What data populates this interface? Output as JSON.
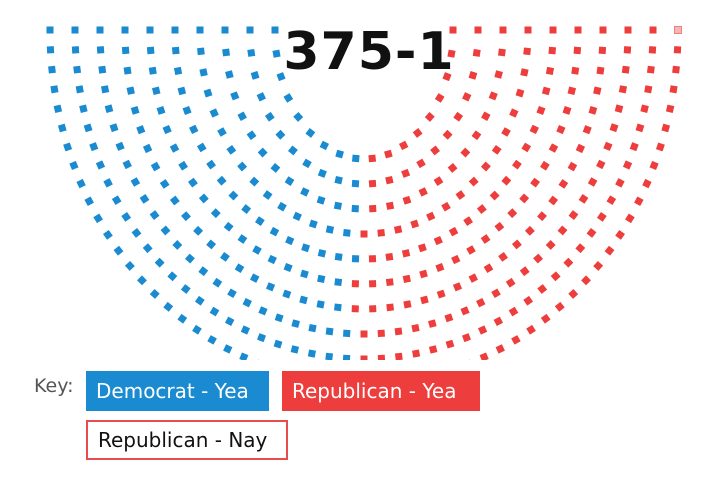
{
  "headline": "375-1",
  "key": {
    "label": "Key:",
    "items": [
      {
        "label": "Democrat - Yea",
        "fill": "#1a8ad1",
        "text_color": "#ffffff"
      },
      {
        "label": "Republican - Yea",
        "fill": "#ee3d3d",
        "text_color": "#ffffff"
      },
      {
        "label": "Republican - Nay",
        "fill": "#ffffff",
        "border": "#e84c4c",
        "text_color": "#111111"
      }
    ]
  },
  "chart_data": {
    "type": "seat-arc",
    "title": "375-1",
    "series": [
      {
        "name": "Democrat - Yea",
        "seats": 184,
        "color": "#1a8ad1"
      },
      {
        "name": "Republican - Yea",
        "seats": 191,
        "color": "#ee3d3d"
      },
      {
        "name": "Republican - Nay",
        "seats": 1,
        "color": "#f7b6b6"
      }
    ],
    "rows": 10
  }
}
